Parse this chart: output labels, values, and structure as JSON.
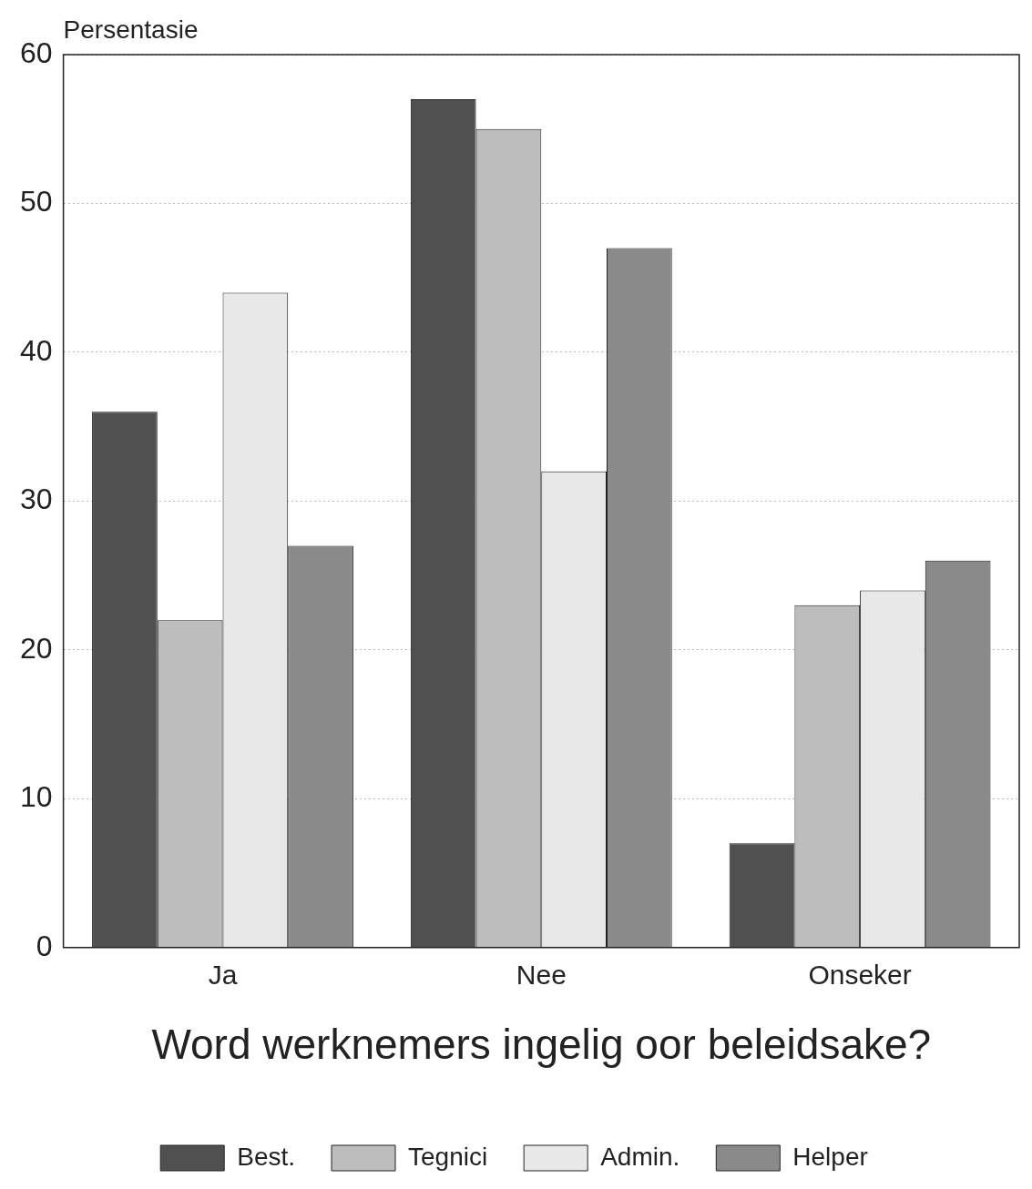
{
  "chart_data": {
    "type": "bar",
    "ylabel": "Persentasie",
    "xlabel": "Word werknemers ingelig oor beleidsake?",
    "categories": [
      "Ja",
      "Nee",
      "Onseker"
    ],
    "series": [
      {
        "name": "Best.",
        "color": "#505050",
        "values": [
          36,
          57,
          7
        ]
      },
      {
        "name": "Tegnici",
        "color": "#bdbdbd",
        "values": [
          22,
          55,
          23
        ]
      },
      {
        "name": "Admin.",
        "color": "#e8e8e8",
        "values": [
          44,
          32,
          24
        ]
      },
      {
        "name": "Helper",
        "color": "#8a8a8a",
        "values": [
          27,
          47,
          26
        ]
      }
    ],
    "ylim": [
      0,
      60
    ],
    "yticks": [
      0,
      10,
      20,
      30,
      40,
      50,
      60
    ],
    "grid": "y",
    "legend": "bottom"
  }
}
